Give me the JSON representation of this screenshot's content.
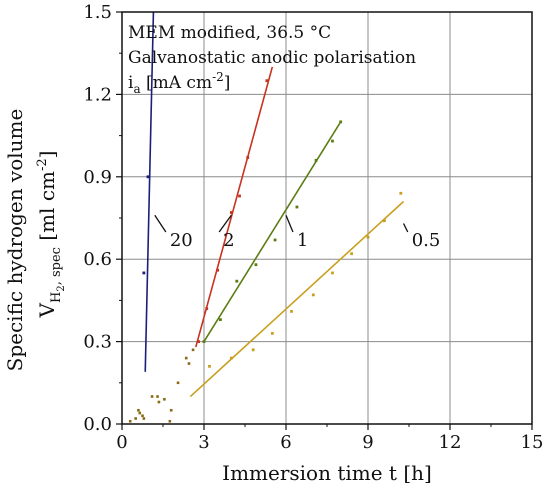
{
  "chart_data": {
    "type": "scatter",
    "title": "",
    "xlabel": "Immersion time t [h]",
    "ylabel_main": "Specific hydrogen volume",
    "ylabel_symbol": "V",
    "ylabel_sub1": "H",
    "ylabel_sub2": "2",
    "ylabel_sub3": ", spec",
    "ylabel_unit": " [ml cm",
    "ylabel_unit_exp": "-2",
    "ylabel_unit_close": "]",
    "xlim": [
      0,
      15
    ],
    "ylim": [
      0,
      1.5
    ],
    "x_ticks": [
      0,
      3,
      6,
      9,
      12,
      15
    ],
    "x_tick_labels": [
      "0",
      "3",
      "6",
      "9",
      "12",
      "15"
    ],
    "y_ticks": [
      0,
      0.3,
      0.6,
      0.9,
      1.2,
      1.5
    ],
    "y_tick_labels": [
      "0.0",
      "0.3",
      "0.6",
      "0.9",
      "1.2",
      "1.5"
    ],
    "grid": true,
    "legend": {
      "line1": "MEM modified, 36.5 °C",
      "line2": "Galvanostatic anodic polarisation",
      "line3_symbol": "i",
      "line3_sub": "a",
      "line3_unit": " [mA cm",
      "line3_exp": "-2",
      "line3_close": "]"
    },
    "series": [
      {
        "name": "20",
        "color": "#1a1f7a",
        "points": [
          [
            0.8,
            0.55
          ],
          [
            0.95,
            0.9
          ]
        ],
        "fit": [
          [
            0.85,
            0.19
          ],
          [
            1.15,
            1.5
          ]
        ],
        "label_anchor": [
          1.2,
          0.76
        ],
        "label_pos": [
          1.75,
          0.67
        ]
      },
      {
        "name": "2",
        "color": "#c8321e",
        "points": [
          [
            2.8,
            0.3
          ],
          [
            3.1,
            0.42
          ],
          [
            3.5,
            0.56
          ],
          [
            4.0,
            0.77
          ],
          [
            4.3,
            0.83
          ],
          [
            4.6,
            0.97
          ],
          [
            5.3,
            1.25
          ]
        ],
        "fit": [
          [
            2.7,
            0.28
          ],
          [
            5.5,
            1.3
          ]
        ],
        "label_anchor": [
          4.0,
          0.76
        ],
        "label_pos": [
          3.7,
          0.67
        ]
      },
      {
        "name": "1",
        "color": "#5a7d12",
        "points": [
          [
            3.0,
            0.3
          ],
          [
            3.6,
            0.38
          ],
          [
            4.2,
            0.52
          ],
          [
            4.9,
            0.58
          ],
          [
            5.6,
            0.67
          ],
          [
            6.4,
            0.79
          ],
          [
            7.1,
            0.96
          ],
          [
            7.7,
            1.03
          ],
          [
            8.0,
            1.1
          ]
        ],
        "fit": [
          [
            3.0,
            0.3
          ],
          [
            8.0,
            1.1
          ]
        ],
        "label_anchor": [
          6.0,
          0.76
        ],
        "label_pos": [
          6.4,
          0.67
        ]
      },
      {
        "name": "0.5",
        "color": "#c8a020",
        "points": [
          [
            3.2,
            0.21
          ],
          [
            4.0,
            0.24
          ],
          [
            4.8,
            0.27
          ],
          [
            5.5,
            0.33
          ],
          [
            6.2,
            0.41
          ],
          [
            7.0,
            0.47
          ],
          [
            7.7,
            0.55
          ],
          [
            8.4,
            0.62
          ],
          [
            9.0,
            0.68
          ],
          [
            9.6,
            0.74
          ],
          [
            10.2,
            0.84
          ]
        ],
        "fit": [
          [
            2.5,
            0.1
          ],
          [
            10.3,
            0.81
          ]
        ],
        "label_anchor": [
          10.3,
          0.73
        ],
        "label_pos": [
          10.6,
          0.67
        ]
      }
    ],
    "extra_points": {
      "color": "#8a6a14",
      "points": [
        [
          0.3,
          0.01
        ],
        [
          0.5,
          0.02
        ],
        [
          0.6,
          0.05
        ],
        [
          0.65,
          0.04
        ],
        [
          0.75,
          0.03
        ],
        [
          0.8,
          0.02
        ],
        [
          1.1,
          0.1
        ],
        [
          1.3,
          0.1
        ],
        [
          1.35,
          0.08
        ],
        [
          1.55,
          0.09
        ],
        [
          1.75,
          0.01
        ],
        [
          1.8,
          0.05
        ],
        [
          2.05,
          0.15
        ],
        [
          2.35,
          0.24
        ],
        [
          2.45,
          0.22
        ],
        [
          2.6,
          0.27
        ]
      ]
    }
  }
}
